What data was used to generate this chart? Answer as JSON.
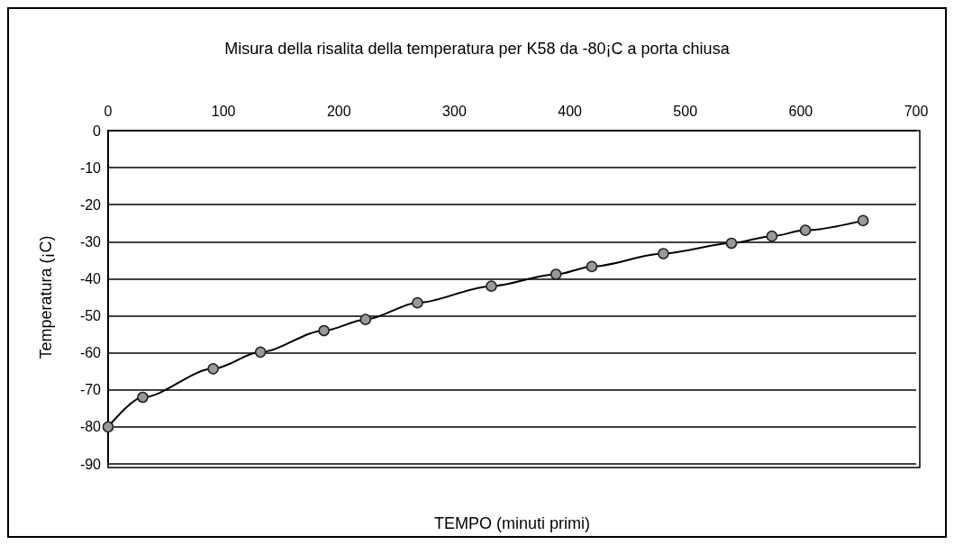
{
  "chart_data": {
    "type": "line",
    "title": "Misura della risalita della temperatura per K58 da -80¡C a porta chiusa",
    "xlabel": "TEMPO (minuti primi)",
    "ylabel": "Temperatura (¡C)",
    "x": [
      0,
      30,
      91,
      132,
      187,
      223,
      268,
      332,
      388,
      419,
      481,
      540,
      575,
      604,
      654
    ],
    "series": [
      {
        "color": "#000000",
        "values": [
          -80,
          -72,
          -64.3,
          -59.8,
          -54,
          -51,
          -46.5,
          -42,
          -38.8,
          -36.7,
          -33.2,
          -30.4,
          -28.5,
          -26.9,
          -24.3
        ]
      }
    ],
    "xlim": [
      0,
      700
    ],
    "xticks": [
      0,
      100,
      200,
      300,
      400,
      500,
      600,
      700
    ],
    "ylim": [
      -90,
      0
    ],
    "yticks": [
      -90,
      -80,
      -70,
      -60,
      -50,
      -40,
      -30,
      -20,
      -10,
      0
    ],
    "grid": "y",
    "marker": "circle",
    "line_style": "solid"
  }
}
